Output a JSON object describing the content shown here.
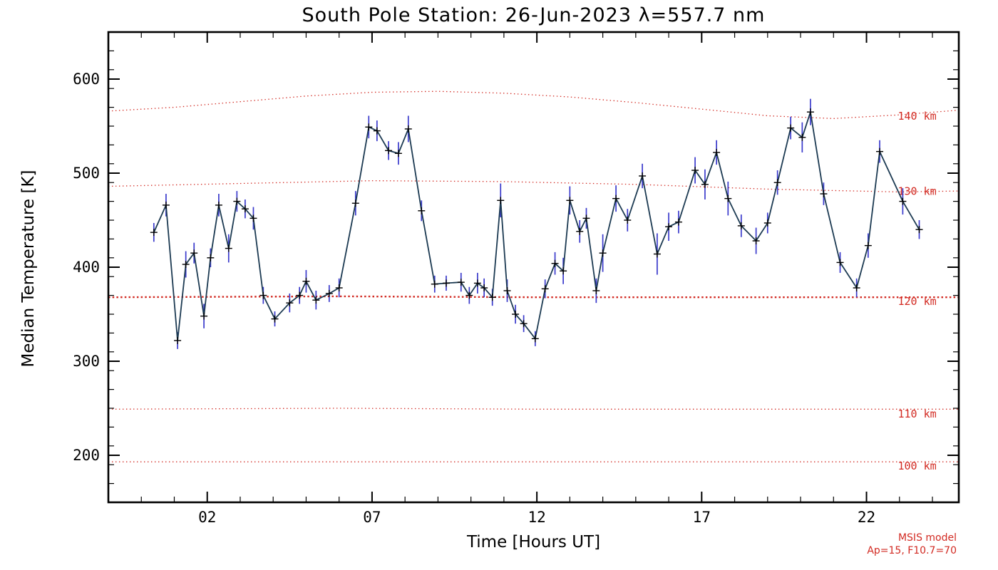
{
  "title": "South Pole Station: 26-Jun-2023 λ=557.7 nm",
  "annotations": {
    "model_name": "MSIS model",
    "model_params": "Ap=15, F10.7=70"
  },
  "chart_data": {
    "type": "line",
    "title": "South Pole Station: 26-Jun-2023 λ=557.7 nm",
    "xlabel": "Time [Hours UT]",
    "ylabel": "Median Temperature [K]",
    "xlim": [
      -1,
      24.8
    ],
    "ylim": [
      150,
      650
    ],
    "grid": false,
    "x_major_ticks": [
      2,
      7,
      12,
      17,
      22
    ],
    "x_tick_labels": [
      "02",
      "07",
      "12",
      "17",
      "22"
    ],
    "x_minor_step": 1,
    "y_major_ticks": [
      200,
      300,
      400,
      500,
      600
    ],
    "y_tick_labels": [
      "200",
      "300",
      "400",
      "500",
      "600"
    ],
    "y_minor_step": 20,
    "colors": {
      "line": "#1c3a52",
      "error_bar": "#3a3acc",
      "marker": "#000000",
      "model": "#d22a22",
      "axis": "#000000"
    },
    "series": {
      "name": "median-temperature",
      "x": [
        0.38,
        0.75,
        1.1,
        1.35,
        1.6,
        1.9,
        2.1,
        2.35,
        2.65,
        2.9,
        3.15,
        3.4,
        3.7,
        4.05,
        4.5,
        4.8,
        5.0,
        5.3,
        5.7,
        6.0,
        6.5,
        6.9,
        7.15,
        7.5,
        7.8,
        8.1,
        8.5,
        8.9,
        9.25,
        9.7,
        9.95,
        10.2,
        10.4,
        10.65,
        10.9,
        11.1,
        11.35,
        11.6,
        11.95,
        12.25,
        12.55,
        12.8,
        13.0,
        13.3,
        13.5,
        13.8,
        14.0,
        14.4,
        14.75,
        15.2,
        15.65,
        16.0,
        16.3,
        16.8,
        17.1,
        17.45,
        17.8,
        18.2,
        18.65,
        19.0,
        19.3,
        19.7,
        20.05,
        20.3,
        20.7,
        21.2,
        21.7,
        22.05,
        22.4,
        23.1,
        23.6
      ],
      "y": [
        437,
        466,
        322,
        403,
        415,
        348,
        410,
        466,
        420,
        470,
        462,
        452,
        370,
        345,
        362,
        370,
        385,
        365,
        372,
        378,
        468,
        549,
        545,
        524,
        521,
        547,
        460,
        382,
        383,
        384,
        370,
        383,
        378,
        368,
        471,
        375,
        350,
        340,
        324,
        377,
        404,
        396,
        471,
        438,
        452,
        375,
        415,
        473,
        450,
        497,
        414,
        443,
        448,
        503,
        488,
        522,
        473,
        444,
        428,
        447,
        490,
        548,
        538,
        565,
        478,
        405,
        378,
        423,
        523,
        470,
        440
      ],
      "yerr": [
        10,
        12,
        9,
        14,
        11,
        13,
        10,
        12,
        15,
        11,
        10,
        12,
        9,
        8,
        10,
        9,
        12,
        10,
        9,
        10,
        13,
        12,
        11,
        10,
        12,
        14,
        11,
        9,
        8,
        10,
        9,
        11,
        10,
        9,
        18,
        12,
        10,
        9,
        8,
        10,
        12,
        14,
        15,
        12,
        11,
        13,
        20,
        14,
        12,
        13,
        22,
        15,
        12,
        14,
        16,
        13,
        18,
        12,
        14,
        11,
        13,
        12,
        16,
        14,
        12,
        11,
        10,
        13,
        12,
        14,
        10
      ]
    },
    "model_curves": [
      {
        "label": "140 km",
        "bold": false,
        "label_x": 22.95,
        "label_y": 557,
        "x": [
          -1,
          1,
          3,
          5,
          7,
          9,
          11,
          13,
          15,
          17,
          19,
          21,
          23,
          24.8
        ],
        "y": [
          566,
          570,
          576,
          582,
          586,
          587,
          585,
          581,
          575,
          568,
          561,
          558,
          562,
          567
        ]
      },
      {
        "label": "130 km",
        "bold": false,
        "label_x": 22.95,
        "label_y": 477,
        "x": [
          -1,
          3,
          7,
          11,
          15,
          19,
          23,
          24.8
        ],
        "y": [
          486,
          489,
          492,
          491,
          488,
          483,
          480,
          481
        ]
      },
      {
        "label": "120 km",
        "bold": true,
        "label_x": 22.95,
        "label_y": 360,
        "x": [
          -1,
          6,
          12,
          18,
          24.8
        ],
        "y": [
          368,
          369,
          368,
          368,
          368
        ]
      },
      {
        "label": "110 km",
        "bold": false,
        "label_x": 22.95,
        "label_y": 240,
        "x": [
          -1,
          6,
          12,
          18,
          24.8
        ],
        "y": [
          249,
          250,
          249,
          249,
          249
        ]
      },
      {
        "label": "100 km",
        "bold": false,
        "label_x": 22.95,
        "label_y": 185,
        "x": [
          -1,
          6,
          12,
          18,
          24.8
        ],
        "y": [
          193,
          193,
          193,
          193,
          193
        ]
      }
    ]
  }
}
